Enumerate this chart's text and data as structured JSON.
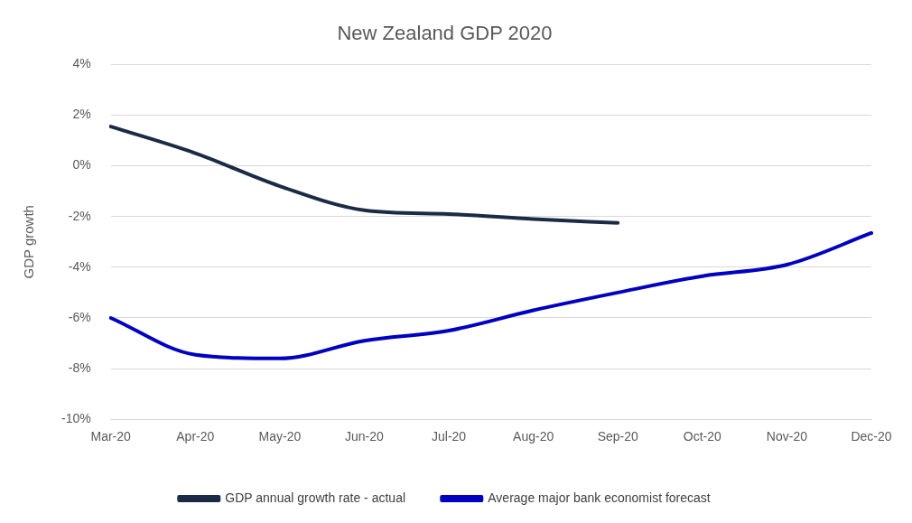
{
  "chart_data": {
    "type": "line",
    "title": "New Zealand GDP 2020",
    "ylabel": "GDP growth",
    "categories": [
      "Mar-20",
      "Apr-20",
      "May-20",
      "Jun-20",
      "Jul-20",
      "Aug-20",
      "Sep-20",
      "Oct-20",
      "Nov-20",
      "Dec-20"
    ],
    "series": [
      {
        "name": "GDP annual growth rate - actual",
        "color": "#1c2b45",
        "values": [
          1.55,
          0.5,
          -0.8,
          -1.75,
          -1.9,
          -2.1,
          -2.25,
          null,
          null,
          null
        ]
      },
      {
        "name": "Average major bank economist forecast",
        "color": "#0000c0",
        "values": [
          -6.0,
          -7.45,
          -7.6,
          -6.9,
          -6.5,
          -5.7,
          -5.0,
          -4.35,
          -3.9,
          -2.65
        ]
      }
    ],
    "ylim": [
      -10,
      4
    ],
    "yticks": [
      {
        "value": -10,
        "label": "-10%"
      },
      {
        "value": -8,
        "label": "-8%"
      },
      {
        "value": -6,
        "label": "-6%"
      },
      {
        "value": -4,
        "label": "-4%"
      },
      {
        "value": -2,
        "label": "-2%"
      },
      {
        "value": 0,
        "label": "0%"
      },
      {
        "value": 2,
        "label": "2%"
      },
      {
        "value": 4,
        "label": "4%"
      }
    ],
    "grid": "y",
    "legend": "bottom",
    "marker": "none",
    "line_style": "solid"
  }
}
